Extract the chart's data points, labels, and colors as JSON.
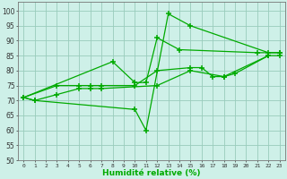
{
  "x": [
    0,
    1,
    2,
    3,
    4,
    5,
    6,
    7,
    8,
    9,
    10,
    11,
    12,
    13,
    14,
    15,
    16,
    17,
    18,
    19,
    20,
    21,
    22,
    23
  ],
  "series1": [
    71,
    70,
    null,
    null,
    null,
    null,
    null,
    null,
    null,
    null,
    67,
    60,
    null,
    99,
    null,
    95,
    null,
    null,
    null,
    null,
    null,
    null,
    86,
    86
  ],
  "series2": [
    71,
    null,
    null,
    null,
    null,
    null,
    null,
    null,
    83,
    null,
    76,
    76,
    91,
    null,
    87,
    null,
    null,
    null,
    null,
    null,
    null,
    86,
    null,
    86
  ],
  "series3": [
    71,
    null,
    null,
    75,
    null,
    75,
    75,
    75,
    null,
    null,
    75,
    null,
    80,
    null,
    null,
    81,
    81,
    78,
    78,
    79,
    null,
    null,
    85,
    85
  ],
  "series4": [
    71,
    70,
    null,
    72,
    null,
    74,
    74,
    74,
    null,
    null,
    null,
    null,
    75,
    null,
    null,
    80,
    null,
    null,
    78,
    null,
    null,
    null,
    85,
    null
  ],
  "background_color": "#cef0e8",
  "grid_color": "#99ccbb",
  "line_color": "#00aa00",
  "xlim": [
    -0.5,
    23.5
  ],
  "ylim": [
    50,
    103
  ],
  "yticks": [
    50,
    55,
    60,
    65,
    70,
    75,
    80,
    85,
    90,
    95,
    100
  ],
  "xtick_labels": [
    "0",
    "1",
    "2",
    "3",
    "4",
    "5",
    "6",
    "7",
    "8",
    "9",
    "10",
    "11",
    "12",
    "13",
    "14",
    "15",
    "16",
    "17",
    "18",
    "19",
    "20",
    "21",
    "22",
    "23"
  ],
  "xlabel": "Humidité relative (%)"
}
